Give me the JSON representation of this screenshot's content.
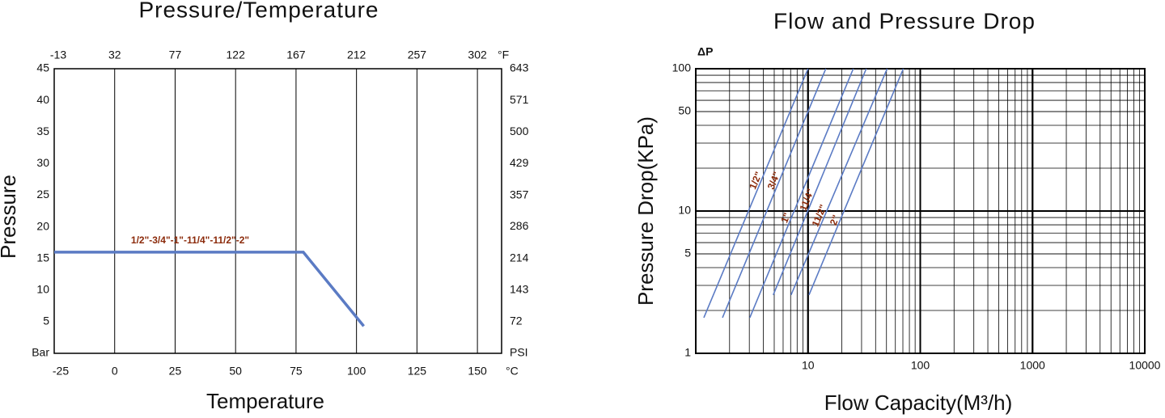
{
  "chart_data": [
    {
      "type": "line",
      "title": "Pressure/Temperature",
      "xlabel": "Temperature",
      "ylabel": "Pressure",
      "x_unit": "°C",
      "x2_unit": "°F",
      "y_unit": "Bar",
      "y2_unit": "PSI",
      "xlim": [
        -25,
        160
      ],
      "xticks": [
        -25,
        0,
        25,
        50,
        75,
        100,
        125,
        150
      ],
      "x2lim": [
        -13,
        320
      ],
      "x2ticks": [
        -13,
        32,
        77,
        122,
        167,
        212,
        257,
        302
      ],
      "ylim": [
        0,
        45
      ],
      "yticks": [
        5,
        10,
        15,
        20,
        25,
        30,
        35,
        40,
        45
      ],
      "y2lim": [
        0,
        643
      ],
      "y2ticks": [
        72,
        143,
        214,
        286,
        357,
        429,
        500,
        571,
        643
      ],
      "grid": "x",
      "series": [
        {
          "name": "1/2\"-3/4\"-1\"-11/4\"-11/2\"-2\"",
          "color": "#5b7bc4",
          "x": [
            -25,
            78,
            103
          ],
          "values": [
            16,
            16,
            4.3
          ]
        }
      ]
    },
    {
      "type": "line",
      "title": "Flow and Pressure Drop",
      "xlabel": "Flow Capacity(M³/h)",
      "ylabel": "Pressure Drop(KPa)",
      "y_unit": "ΔP",
      "xlog": true,
      "ylog": true,
      "xlim": [
        1,
        10000
      ],
      "xticks": [
        10,
        100,
        1000,
        10000
      ],
      "ylim": [
        1,
        100
      ],
      "yticks": [
        1,
        5,
        10,
        50,
        100
      ],
      "grid": "log",
      "series": [
        {
          "name": "1/2\"",
          "color": "#5b7bc4",
          "x": [
            1.18,
            10
          ],
          "values": [
            1.78,
            100
          ]
        },
        {
          "name": "3/4\"",
          "color": "#5b7bc4",
          "x": [
            1.73,
            14.4
          ],
          "values": [
            1.78,
            100
          ]
        },
        {
          "name": "1\"",
          "color": "#5b7bc4",
          "x": [
            3.03,
            25.3
          ],
          "values": [
            1.78,
            100
          ]
        },
        {
          "name": "11/4\"",
          "color": "#5b7bc4",
          "x": [
            4.9,
            33
          ],
          "values": [
            2.57,
            100
          ]
        },
        {
          "name": "11/2\"",
          "color": "#5b7bc4",
          "x": [
            7.06,
            50.7
          ],
          "values": [
            2.57,
            100
          ]
        },
        {
          "name": "2\"",
          "color": "#5b7bc4",
          "x": [
            10.2,
            70.6
          ],
          "values": [
            2.57,
            100
          ]
        }
      ]
    }
  ]
}
